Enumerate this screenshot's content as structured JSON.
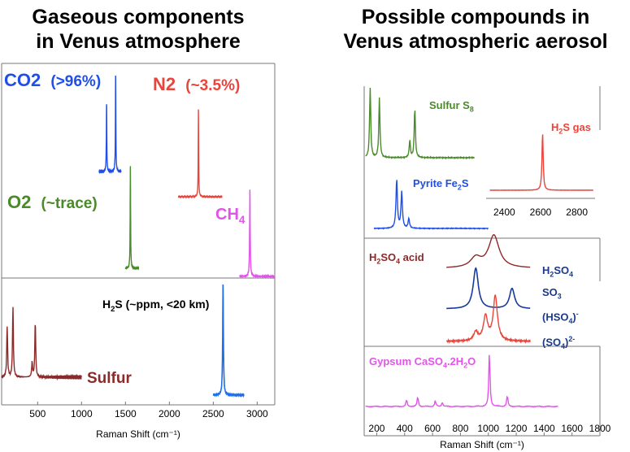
{
  "left_panel": {
    "heading_line1": "Gaseous components",
    "heading_line2": "in Venus atmosphere",
    "xlabel": "Raman Shift (cm⁻¹)",
    "ticks": [
      "500",
      "1000",
      "1500",
      "2000",
      "2500",
      "3000"
    ],
    "labels": {
      "co2_main": "CO2",
      "co2_pct": "(>96%)",
      "n2_main": "N2",
      "n2_pct": "(~3.5%)",
      "o2_main": "O2",
      "o2_pct": "(~trace)",
      "ch4": "CH",
      "ch4_sub": "4",
      "h2s_a": "H",
      "h2s_sub": "2",
      "h2s_b": "S (~ppm, <20 km)",
      "sulfur": "Sulfur"
    }
  },
  "right_panel": {
    "heading_line1": "Possible compounds in",
    "heading_line2": "Venus atmospheric aerosol",
    "xlabel": "Raman Shift (cm⁻¹)",
    "ticks": [
      "200",
      "400",
      "600",
      "800",
      "1000",
      "1200",
      "1400",
      "1600",
      "1800"
    ],
    "inset_ticks": [
      "2400",
      "2600",
      "2800"
    ],
    "labels": {
      "sulfur_s8": "Sulfur S",
      "sulfur_s8_sub": "8",
      "h2s_gas_a": "H",
      "h2s_gas_sub": "2",
      "h2s_gas_b": "S gas",
      "pyrite": "Pyrite Fe",
      "pyrite_sub": "2",
      "pyrite_b": "S",
      "h2so4_a": "H",
      "h2so4_sub1": "2",
      "h2so4_b": "SO",
      "h2so4_sub2": "4",
      "h2so4_c": " acid",
      "legend_h2so4": "H",
      "legend_h2so4_s1": "2",
      "legend_h2so4_b": "SO",
      "legend_h2so4_s2": "4",
      "legend_so3": "SO",
      "legend_so3_sub": "3",
      "legend_hso4": "(HSO",
      "legend_hso4_sub": "4",
      "legend_hso4_close": ")",
      "legend_hso4_sup": "-",
      "legend_so4": "(SO",
      "legend_so4_sub": "4",
      "legend_so4_close": ")",
      "legend_so4_sup": "2-",
      "gypsum": "Gypsum CaSO",
      "gypsum_sub1": "4",
      "gypsum_b": ".2H",
      "gypsum_sub2": "2",
      "gypsum_c": "O"
    }
  },
  "colors": {
    "co2": "#1f4fe8",
    "n2": "#e8453c",
    "o2": "#4a8a2a",
    "ch4": "#e055e8",
    "h2s": "#1f6fe8",
    "sulfur": "#8b2a2a",
    "h2s_gas": "#e8453c",
    "pyrite": "#1f4fe8",
    "h2so4_acid": "#8b2a2a",
    "so3": "#1a3a9a",
    "hso4": "#e8453c",
    "gypsum": "#e055e8",
    "legend_text": "#1a3a8a"
  },
  "chart_data": [
    {
      "type": "line",
      "title": "Gaseous components in Venus atmosphere",
      "xlabel": "Raman Shift (cm⁻¹)",
      "xlim": [
        90,
        3200
      ],
      "series": [
        {
          "name": "CO2 (>96%)",
          "peaks": [
            [
              1285,
              0.7
            ],
            [
              1388,
              1.0
            ]
          ],
          "x": [
            1200,
            1450
          ]
        },
        {
          "name": "N2 (~3.5%)",
          "peaks": [
            [
              2331,
              1.0
            ]
          ],
          "x": [
            2100,
            2600
          ]
        },
        {
          "name": "O2 (~trace)",
          "peaks": [
            [
              1556,
              1.0
            ]
          ],
          "x": [
            1500,
            1650
          ]
        },
        {
          "name": "CH4",
          "peaks": [
            [
              2917,
              1.0
            ]
          ],
          "x": [
            2800,
            3200
          ]
        },
        {
          "name": "H2S (~ppm, <20 km)",
          "peaks": [
            [
              2611,
              1.0
            ]
          ],
          "x": [
            2500,
            2850
          ]
        },
        {
          "name": "Sulfur",
          "peaks": [
            [
              153,
              0.7
            ],
            [
              219,
              0.95
            ],
            [
              437,
              0.2
            ],
            [
              473,
              0.75
            ]
          ],
          "x": [
            90,
            1000
          ]
        }
      ]
    },
    {
      "type": "line",
      "title": "Possible compounds in Venus atmospheric aerosol",
      "xlabel": "Raman Shift (cm⁻¹)",
      "xlim": [
        110,
        1800
      ],
      "series": [
        {
          "name": "Sulfur S8",
          "peaks": [
            [
              153,
              1.0
            ],
            [
              219,
              0.85
            ],
            [
              437,
              0.25
            ],
            [
              473,
              0.7
            ]
          ]
        },
        {
          "name": "Pyrite Fe2S",
          "peaks": [
            [
              343,
              1.0
            ],
            [
              379,
              0.75
            ],
            [
              430,
              0.2
            ]
          ]
        },
        {
          "name": "H2SO4 acid",
          "peaks": [
            [
              910,
              0.3
            ],
            [
              1040,
              1.0
            ]
          ]
        },
        {
          "name": "H2SO4",
          "peaks": [
            [
              910,
              1.0
            ],
            [
              1170,
              0.5
            ]
          ]
        },
        {
          "name": "(HSO4)-",
          "peaks": [
            [
              910,
              0.2
            ],
            [
              980,
              0.55
            ],
            [
              1050,
              1.0
            ]
          ]
        },
        {
          "name": "Gypsum CaSO4.2H2O",
          "peaks": [
            [
              414,
              0.12
            ],
            [
              494,
              0.18
            ],
            [
              620,
              0.1
            ],
            [
              670,
              0.08
            ],
            [
              1008,
              1.0
            ],
            [
              1136,
              0.2
            ]
          ]
        }
      ],
      "inset": {
        "xlim": [
          2300,
          2900
        ],
        "ticks": [
          2400,
          2600,
          2800
        ],
        "series": [
          {
            "name": "H2S gas",
            "peaks": [
              [
                2611,
                1.0
              ]
            ]
          }
        ]
      }
    }
  ]
}
